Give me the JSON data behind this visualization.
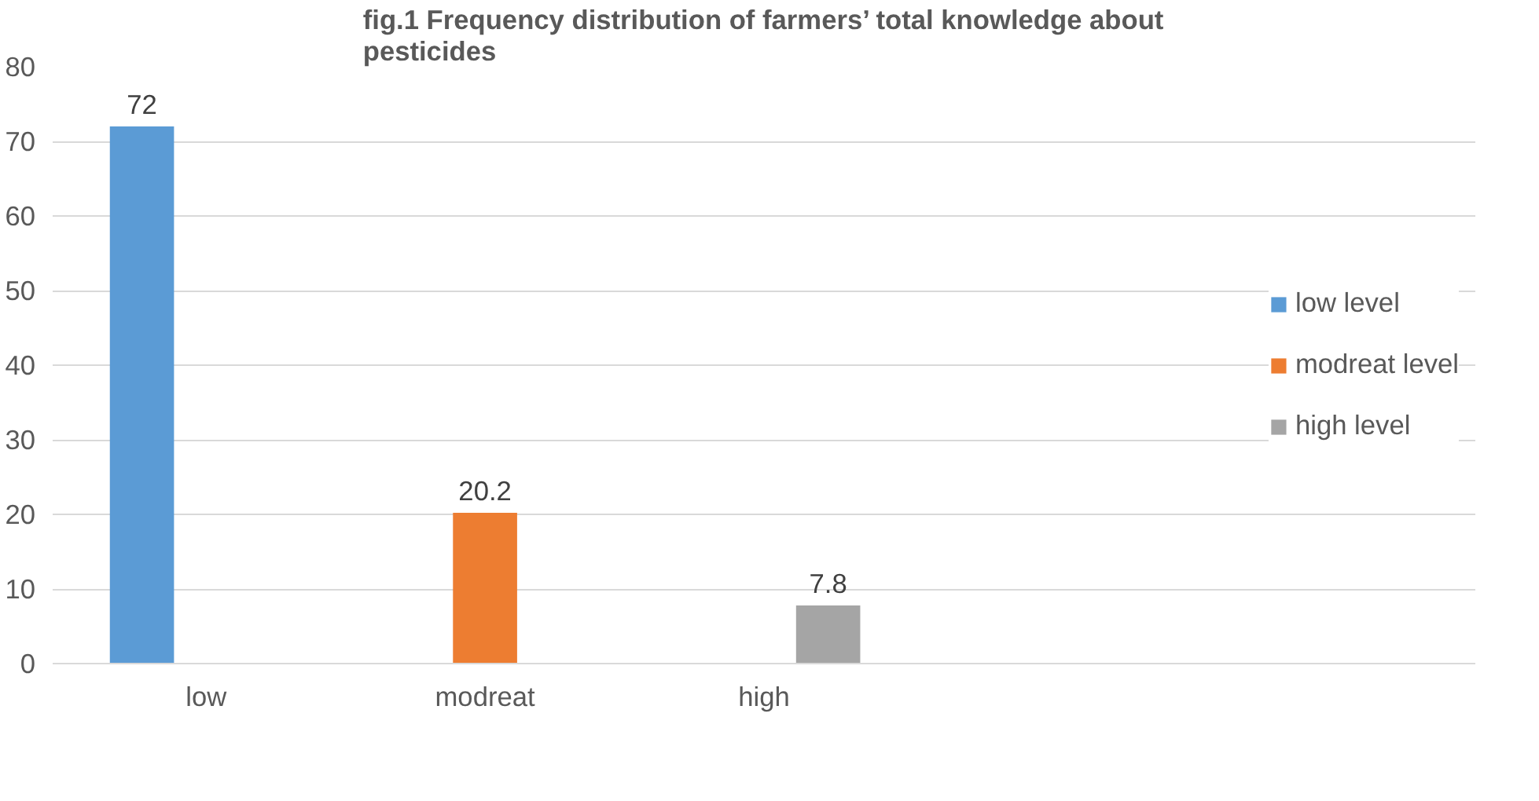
{
  "chart_data": {
    "type": "bar",
    "title": "fig.1 Frequency distribution of farmers’ total knowledge about pesticides",
    "categories": [
      "low",
      "modreat",
      "high"
    ],
    "series": [
      {
        "name": "low level",
        "color": "#5b9bd5",
        "values": [
          72,
          null,
          null
        ]
      },
      {
        "name": "modreat level",
        "color": "#ed7d31",
        "values": [
          null,
          20.2,
          null
        ]
      },
      {
        "name": "high level",
        "color": "#a5a5a5",
        "values": [
          null,
          null,
          7.8
        ]
      }
    ],
    "ylim": [
      0,
      80
    ],
    "yticks": [
      0,
      10,
      20,
      30,
      40,
      50,
      60,
      70,
      80
    ],
    "grid": "y",
    "legend": "right",
    "data_labels": true
  }
}
